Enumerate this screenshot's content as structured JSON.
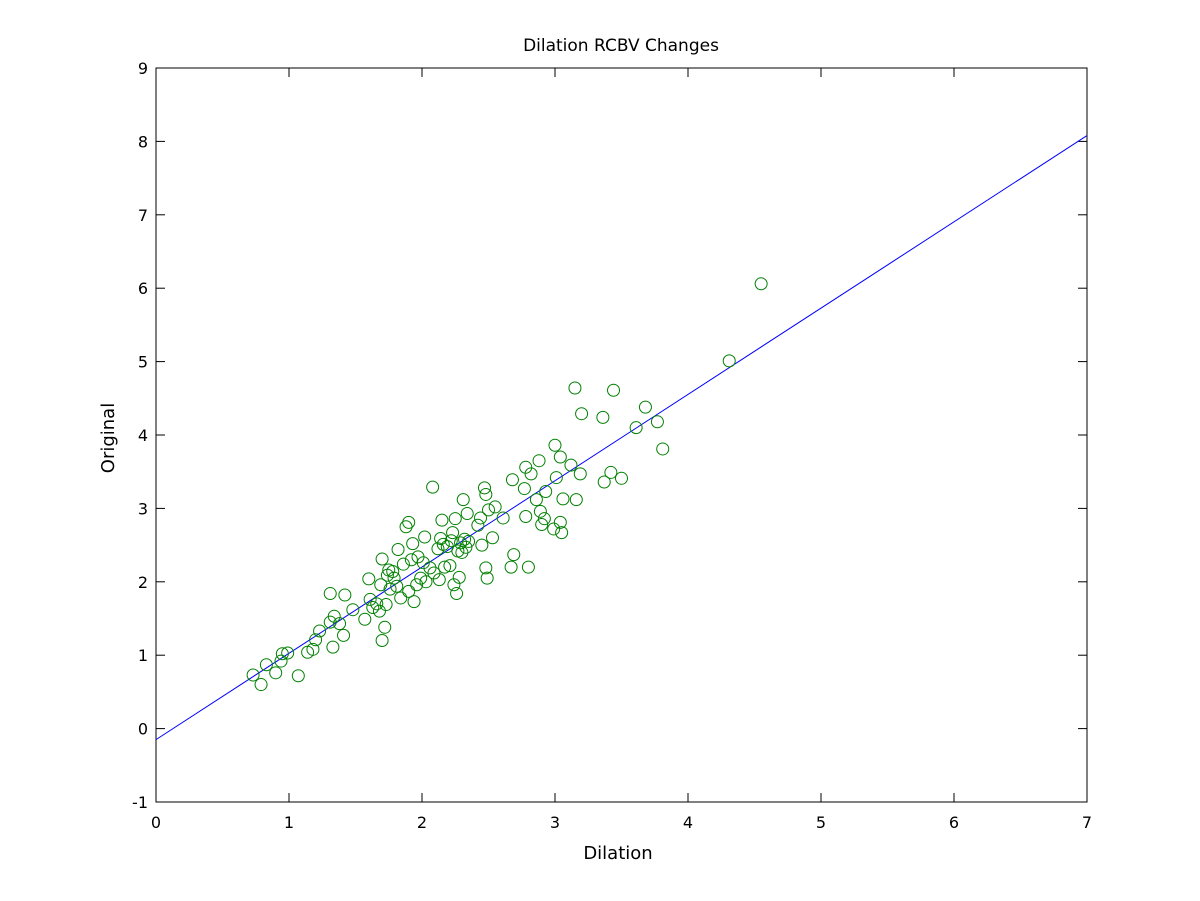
{
  "chart_data": {
    "type": "scatter",
    "title": "Dilation RCBV Changes",
    "xlabel": "Dilation",
    "ylabel": "Original",
    "xlim": [
      0,
      7
    ],
    "ylim": [
      -1,
      9
    ],
    "xticks": [
      0,
      1,
      2,
      3,
      4,
      5,
      6,
      7
    ],
    "yticks": [
      -1,
      0,
      1,
      2,
      3,
      4,
      5,
      6,
      7,
      8,
      9
    ],
    "grid": false,
    "legend": "none",
    "colors": {
      "points": "#008000",
      "fit_line": "#0000ff",
      "axes": "#000000"
    },
    "fit_line": {
      "x": [
        0,
        7
      ],
      "y": [
        -0.15,
        8.08
      ]
    },
    "points": [
      [
        0.73,
        0.73
      ],
      [
        0.79,
        0.6
      ],
      [
        0.83,
        0.87
      ],
      [
        0.9,
        0.76
      ],
      [
        0.94,
        0.92
      ],
      [
        0.95,
        1.02
      ],
      [
        0.99,
        1.03
      ],
      [
        1.07,
        0.72
      ],
      [
        1.14,
        1.04
      ],
      [
        1.18,
        1.08
      ],
      [
        1.2,
        1.21
      ],
      [
        1.23,
        1.33
      ],
      [
        1.31,
        1.45
      ],
      [
        1.31,
        1.84
      ],
      [
        1.34,
        1.53
      ],
      [
        1.33,
        1.11
      ],
      [
        1.38,
        1.43
      ],
      [
        1.41,
        1.27
      ],
      [
        1.42,
        1.82
      ],
      [
        1.48,
        1.62
      ],
      [
        1.57,
        1.49
      ],
      [
        1.6,
        2.04
      ],
      [
        1.61,
        1.76
      ],
      [
        1.63,
        1.65
      ],
      [
        1.66,
        1.7
      ],
      [
        1.68,
        1.6
      ],
      [
        1.69,
        1.96
      ],
      [
        1.7,
        2.31
      ],
      [
        1.7,
        1.2
      ],
      [
        1.72,
        1.38
      ],
      [
        1.73,
        1.69
      ],
      [
        1.74,
        2.09
      ],
      [
        1.75,
        2.16
      ],
      [
        1.76,
        1.9
      ],
      [
        1.78,
        2.14
      ],
      [
        1.79,
        2.05
      ],
      [
        1.81,
        1.94
      ],
      [
        1.82,
        2.44
      ],
      [
        1.84,
        1.78
      ],
      [
        1.86,
        2.24
      ],
      [
        1.88,
        2.75
      ],
      [
        1.9,
        2.81
      ],
      [
        1.9,
        1.87
      ],
      [
        1.92,
        2.3
      ],
      [
        1.93,
        2.52
      ],
      [
        1.94,
        1.73
      ],
      [
        1.96,
        1.96
      ],
      [
        1.97,
        2.34
      ],
      [
        1.99,
        2.05
      ],
      [
        2.01,
        2.26
      ],
      [
        2.02,
        2.61
      ],
      [
        2.03,
        2.0
      ],
      [
        2.06,
        2.19
      ],
      [
        2.08,
        3.29
      ],
      [
        2.09,
        2.12
      ],
      [
        2.12,
        2.45
      ],
      [
        2.13,
        2.03
      ],
      [
        2.14,
        2.59
      ],
      [
        2.15,
        2.84
      ],
      [
        2.16,
        2.51
      ],
      [
        2.17,
        2.2
      ],
      [
        2.19,
        2.48
      ],
      [
        2.21,
        2.22
      ],
      [
        2.22,
        2.56
      ],
      [
        2.23,
        2.67
      ],
      [
        2.24,
        1.96
      ],
      [
        2.25,
        2.86
      ],
      [
        2.26,
        1.84
      ],
      [
        2.27,
        2.42
      ],
      [
        2.28,
        2.06
      ],
      [
        2.29,
        2.53
      ],
      [
        2.3,
        2.4
      ],
      [
        2.31,
        3.12
      ],
      [
        2.32,
        2.58
      ],
      [
        2.33,
        2.47
      ],
      [
        2.34,
        2.93
      ],
      [
        2.35,
        2.55
      ],
      [
        2.42,
        2.77
      ],
      [
        2.44,
        2.87
      ],
      [
        2.45,
        2.5
      ],
      [
        2.47,
        3.28
      ],
      [
        2.48,
        3.19
      ],
      [
        2.48,
        2.19
      ],
      [
        2.49,
        2.05
      ],
      [
        2.5,
        2.98
      ],
      [
        2.53,
        2.6
      ],
      [
        2.55,
        3.02
      ],
      [
        2.61,
        2.87
      ],
      [
        2.67,
        2.2
      ],
      [
        2.68,
        3.39
      ],
      [
        2.69,
        2.37
      ],
      [
        2.77,
        3.27
      ],
      [
        2.78,
        3.56
      ],
      [
        2.78,
        2.89
      ],
      [
        2.8,
        2.2
      ],
      [
        2.82,
        3.47
      ],
      [
        2.86,
        3.12
      ],
      [
        2.88,
        3.65
      ],
      [
        2.89,
        2.96
      ],
      [
        2.9,
        2.78
      ],
      [
        2.92,
        2.86
      ],
      [
        2.93,
        3.23
      ],
      [
        2.99,
        2.72
      ],
      [
        3.0,
        3.86
      ],
      [
        3.01,
        3.42
      ],
      [
        3.04,
        3.7
      ],
      [
        3.04,
        2.81
      ],
      [
        3.05,
        2.67
      ],
      [
        3.06,
        3.13
      ],
      [
        3.12,
        3.59
      ],
      [
        3.15,
        4.64
      ],
      [
        3.16,
        3.12
      ],
      [
        3.19,
        3.47
      ],
      [
        3.2,
        4.29
      ],
      [
        3.36,
        4.24
      ],
      [
        3.37,
        3.36
      ],
      [
        3.42,
        3.49
      ],
      [
        3.44,
        4.61
      ],
      [
        3.5,
        3.41
      ],
      [
        3.61,
        4.1
      ],
      [
        3.68,
        4.38
      ],
      [
        3.77,
        4.18
      ],
      [
        3.81,
        3.81
      ],
      [
        4.31,
        5.01
      ],
      [
        4.55,
        6.06
      ]
    ]
  }
}
